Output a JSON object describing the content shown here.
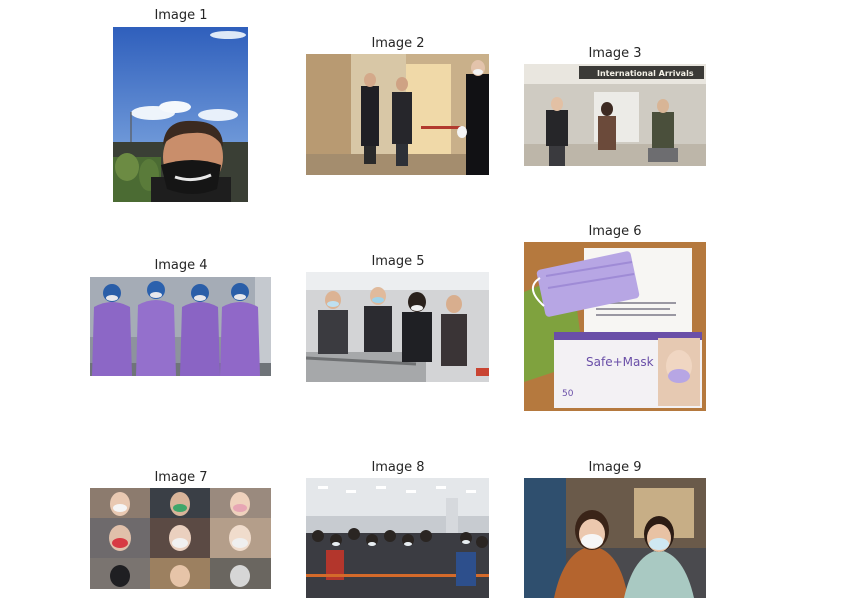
{
  "grid": {
    "titles": [
      "Image 1",
      "Image 2",
      "Image 3",
      "Image 4",
      "Image 5",
      "Image 6",
      "Image 7",
      "Image 8",
      "Image 9"
    ]
  },
  "photos": {
    "image3_sign": "International Arrivals",
    "image6_brand": "Safe+Mask",
    "image6_count": "50"
  },
  "colors": {
    "sky": "#3f6fc4",
    "ppe_purple": "#8c67c6",
    "mask_lavender": "#b7a6e4",
    "box_white": "#f3f1f4",
    "wood": "#b5793e",
    "coat_orange": "#b4642e",
    "coat_mint": "#a9c9c2"
  }
}
